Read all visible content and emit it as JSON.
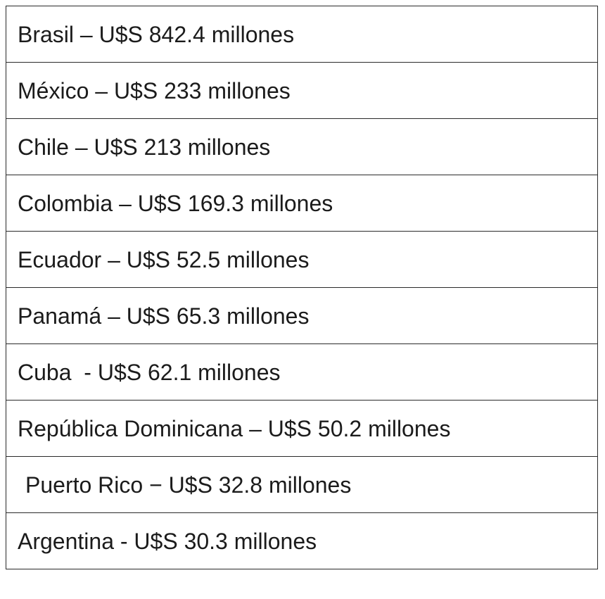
{
  "table": {
    "rows": [
      "Brasil – U$S 842.4 millones",
      "México – U$S 233 millones",
      "Chile – U$S 213 millones",
      "Colombia – U$S 169.3 millones",
      "Ecuador – U$S 52.5 millones",
      "Panamá – U$S 65.3 millones",
      "Cuba  - U$S 62.1 millones",
      "República Dominicana – U$S 50.2 millones",
      "Puerto Rico − U$S 32.8 millones",
      "Argentina - U$S 30.3 millones"
    ]
  }
}
